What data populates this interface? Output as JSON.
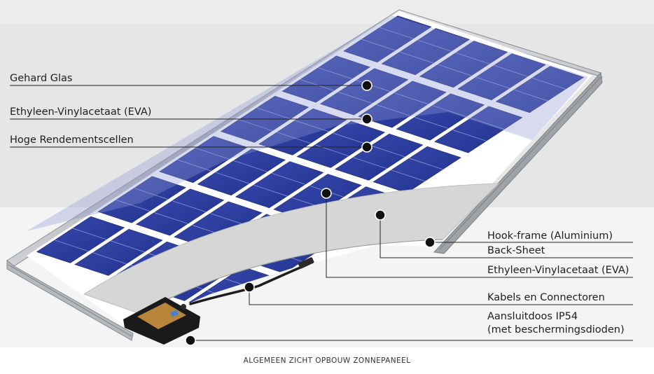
{
  "labels_left": [
    {
      "id": "glass",
      "text": "Gehard Glas"
    },
    {
      "id": "eva_top",
      "text": "Ethyleen-Vinylacetaat (EVA)"
    },
    {
      "id": "cells",
      "text": "Hoge Rendementscellen"
    }
  ],
  "labels_right": [
    {
      "id": "frame",
      "text": "Hook-frame (Aluminium)"
    },
    {
      "id": "backsheet",
      "text": "Back-Sheet"
    },
    {
      "id": "eva_bottom",
      "text": "Ethyleen-Vinylacetaat (EVA)"
    },
    {
      "id": "cables",
      "text": "Kabels en Connectoren"
    },
    {
      "id": "junction_box",
      "text": "Aansluitdoos IP54\n(met beschermingsdioden)"
    }
  ],
  "caption": "ALGEMEEN ZICHT OPBOUW ZONNEPANEEL",
  "colors": {
    "cell_blue": "#2c3e9e",
    "cell_blue_light": "#5866b8",
    "glass_overlay": "#6f7bc4",
    "frame_silver": "#b9bcc0",
    "backsheet_gray": "#d4d4d4",
    "junction_box": "#1a1a1a",
    "pcb_copper": "#b8863a",
    "band_gray": "#ececec"
  }
}
